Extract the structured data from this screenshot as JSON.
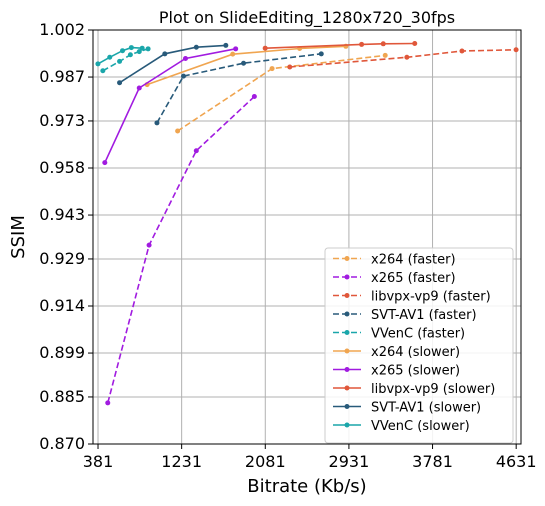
{
  "chart_data": {
    "type": "line",
    "title": "Plot on SlideEditing_1280x720_30fps",
    "xlabel": "Bitrate (Kb/s)",
    "ylabel": "SSIM",
    "xlim": [
      330,
      4680
    ],
    "ylim": [
      0.87,
      1.002
    ],
    "x_ticks": [
      "381",
      "1231",
      "2081",
      "2931",
      "3781",
      "4631"
    ],
    "y_ticks": [
      "0.870",
      "0.885",
      "0.899",
      "0.914",
      "0.929",
      "0.943",
      "0.958",
      "0.973",
      "0.987",
      "1.002"
    ],
    "grid": true,
    "legend_position": "lower-right",
    "series": [
      {
        "name": "x264 (faster)",
        "color": "#f0a550",
        "dashed": true,
        "points": [
          [
            1190,
            0.9698
          ],
          [
            2150,
            0.9897
          ],
          [
            3300,
            0.9939
          ]
        ]
      },
      {
        "name": "x265 (faster)",
        "color": "#a11be0",
        "dashed": true,
        "points": [
          [
            480,
            0.8831
          ],
          [
            900,
            0.9334
          ],
          [
            1380,
            0.9635
          ],
          [
            1970,
            0.9808
          ]
        ]
      },
      {
        "name": "libvpx-vp9 (faster)",
        "color": "#e0573a",
        "dashed": true,
        "points": [
          [
            2330,
            0.9902
          ],
          [
            3520,
            0.9933
          ],
          [
            4080,
            0.9953
          ],
          [
            4630,
            0.9957
          ]
        ]
      },
      {
        "name": "SVT-AV1 (faster)",
        "color": "#285a7a",
        "dashed": true,
        "points": [
          [
            980,
            0.9724
          ],
          [
            1250,
            0.9873
          ],
          [
            1860,
            0.9914
          ],
          [
            2650,
            0.9944
          ]
        ]
      },
      {
        "name": "VVenC (faster)",
        "color": "#1aa6aa",
        "dashed": true,
        "points": [
          [
            430,
            0.989
          ],
          [
            600,
            0.992
          ],
          [
            710,
            0.9941
          ],
          [
            800,
            0.9951
          ],
          [
            890,
            0.996
          ]
        ]
      },
      {
        "name": "x264 (slower)",
        "color": "#f0a550",
        "dashed": false,
        "points": [
          [
            880,
            0.9846
          ],
          [
            1750,
            0.9943
          ],
          [
            2430,
            0.9961
          ],
          [
            2900,
            0.9968
          ]
        ]
      },
      {
        "name": "x265 (slower)",
        "color": "#a11be0",
        "dashed": false,
        "points": [
          [
            450,
            0.9597
          ],
          [
            800,
            0.9835
          ],
          [
            1270,
            0.9929
          ],
          [
            1780,
            0.996
          ]
        ]
      },
      {
        "name": "libvpx-vp9 (slower)",
        "color": "#e0573a",
        "dashed": false,
        "points": [
          [
            2080,
            0.9962
          ],
          [
            3060,
            0.9974
          ],
          [
            3280,
            0.9976
          ],
          [
            3600,
            0.9977
          ]
        ]
      },
      {
        "name": "SVT-AV1 (slower)",
        "color": "#285a7a",
        "dashed": false,
        "points": [
          [
            600,
            0.9852
          ],
          [
            1060,
            0.9944
          ],
          [
            1380,
            0.9965
          ],
          [
            1680,
            0.9971
          ]
        ]
      },
      {
        "name": "VVenC (slower)",
        "color": "#1aa6aa",
        "dashed": false,
        "points": [
          [
            380,
            0.9912
          ],
          [
            500,
            0.9933
          ],
          [
            630,
            0.9954
          ],
          [
            720,
            0.9964
          ],
          [
            830,
            0.9962
          ]
        ]
      }
    ]
  }
}
